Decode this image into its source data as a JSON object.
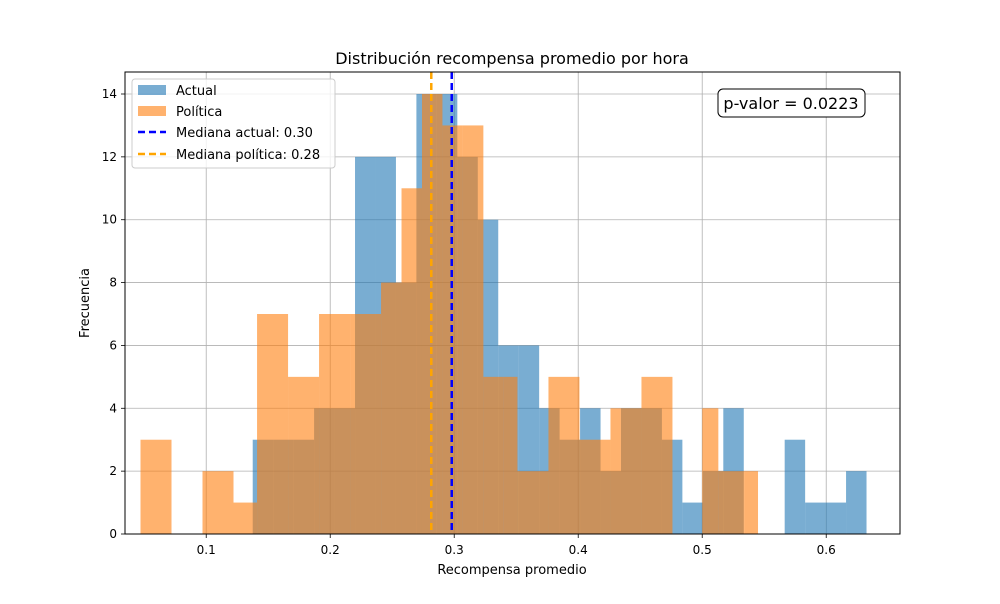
{
  "chart_data": {
    "type": "histogram",
    "title": "Distribución recompensa promedio por hora",
    "xlabel": "Recompensa promedio",
    "ylabel": "Frecuencia",
    "xlim": [
      0.0345,
      0.6595
    ],
    "ylim": [
      0,
      14.7
    ],
    "xticks": [
      0.1,
      0.2,
      0.3,
      0.4,
      0.5,
      0.6
    ],
    "xtick_labels": [
      "0.1",
      "0.2",
      "0.3",
      "0.4",
      "0.5",
      "0.6"
    ],
    "yticks": [
      0,
      2,
      4,
      6,
      8,
      10,
      12,
      14
    ],
    "ytick_labels": [
      "0",
      "2",
      "4",
      "6",
      "8",
      "10",
      "12",
      "14"
    ],
    "grid": true,
    "legend_position": "top-left",
    "series": [
      {
        "name": "Actual",
        "color": "#1f77b4",
        "alpha": 0.6,
        "bins": [
          [
            0.1375,
            0.154,
            3
          ],
          [
            0.154,
            0.1705,
            3
          ],
          [
            0.1705,
            0.187,
            3
          ],
          [
            0.187,
            0.2035,
            4
          ],
          [
            0.2035,
            0.22,
            4
          ],
          [
            0.22,
            0.2365,
            12
          ],
          [
            0.2365,
            0.253,
            12
          ],
          [
            0.253,
            0.2695,
            8
          ],
          [
            0.2695,
            0.286,
            14
          ],
          [
            0.286,
            0.3025,
            14
          ],
          [
            0.3025,
            0.319,
            12
          ],
          [
            0.319,
            0.3355,
            10
          ],
          [
            0.3355,
            0.352,
            6
          ],
          [
            0.352,
            0.3685,
            6
          ],
          [
            0.3685,
            0.385,
            4
          ],
          [
            0.385,
            0.4015,
            3
          ],
          [
            0.4015,
            0.418,
            4
          ],
          [
            0.418,
            0.4345,
            2
          ],
          [
            0.4345,
            0.451,
            4
          ],
          [
            0.451,
            0.4675,
            4
          ],
          [
            0.4675,
            0.484,
            3
          ],
          [
            0.484,
            0.5005,
            1
          ],
          [
            0.5005,
            0.517,
            2
          ],
          [
            0.517,
            0.5335,
            4
          ],
          [
            0.5335,
            0.55,
            0
          ],
          [
            0.55,
            0.5665,
            0
          ],
          [
            0.5665,
            0.583,
            3
          ],
          [
            0.583,
            0.5995,
            1
          ],
          [
            0.5995,
            0.616,
            1
          ],
          [
            0.616,
            0.6325,
            2
          ]
        ]
      },
      {
        "name": "Política",
        "color": "#ff7f0e",
        "alpha": 0.6,
        "bins": [
          [
            0.047,
            0.072,
            3
          ],
          [
            0.072,
            0.097,
            0
          ],
          [
            0.097,
            0.122,
            2
          ],
          [
            0.122,
            0.141,
            1
          ],
          [
            0.141,
            0.166,
            7
          ],
          [
            0.166,
            0.191,
            5
          ],
          [
            0.191,
            0.216,
            7
          ],
          [
            0.216,
            0.241,
            7
          ],
          [
            0.241,
            0.2575,
            8
          ],
          [
            0.2575,
            0.274,
            11
          ],
          [
            0.274,
            0.2905,
            14
          ],
          [
            0.2905,
            0.307,
            13
          ],
          [
            0.307,
            0.3235,
            13
          ],
          [
            0.3235,
            0.34,
            5
          ],
          [
            0.34,
            0.351,
            5
          ],
          [
            0.351,
            0.376,
            2
          ],
          [
            0.376,
            0.401,
            5
          ],
          [
            0.401,
            0.426,
            3
          ],
          [
            0.426,
            0.451,
            4
          ],
          [
            0.451,
            0.476,
            5
          ],
          [
            0.476,
            0.5,
            0
          ],
          [
            0.5,
            0.513,
            4
          ],
          [
            0.513,
            0.534,
            2
          ],
          [
            0.534,
            0.545,
            2
          ]
        ]
      }
    ],
    "median_lines": [
      {
        "label": "Mediana actual: 0.30",
        "x": 0.298,
        "color": "#0000ff",
        "style": "dashed"
      },
      {
        "label": "Mediana política: 0.28",
        "x": 0.2815,
        "color": "#ffa500",
        "style": "dashed"
      }
    ],
    "annotation": {
      "text": "p-valor = 0.0223",
      "position": "top-right"
    }
  }
}
